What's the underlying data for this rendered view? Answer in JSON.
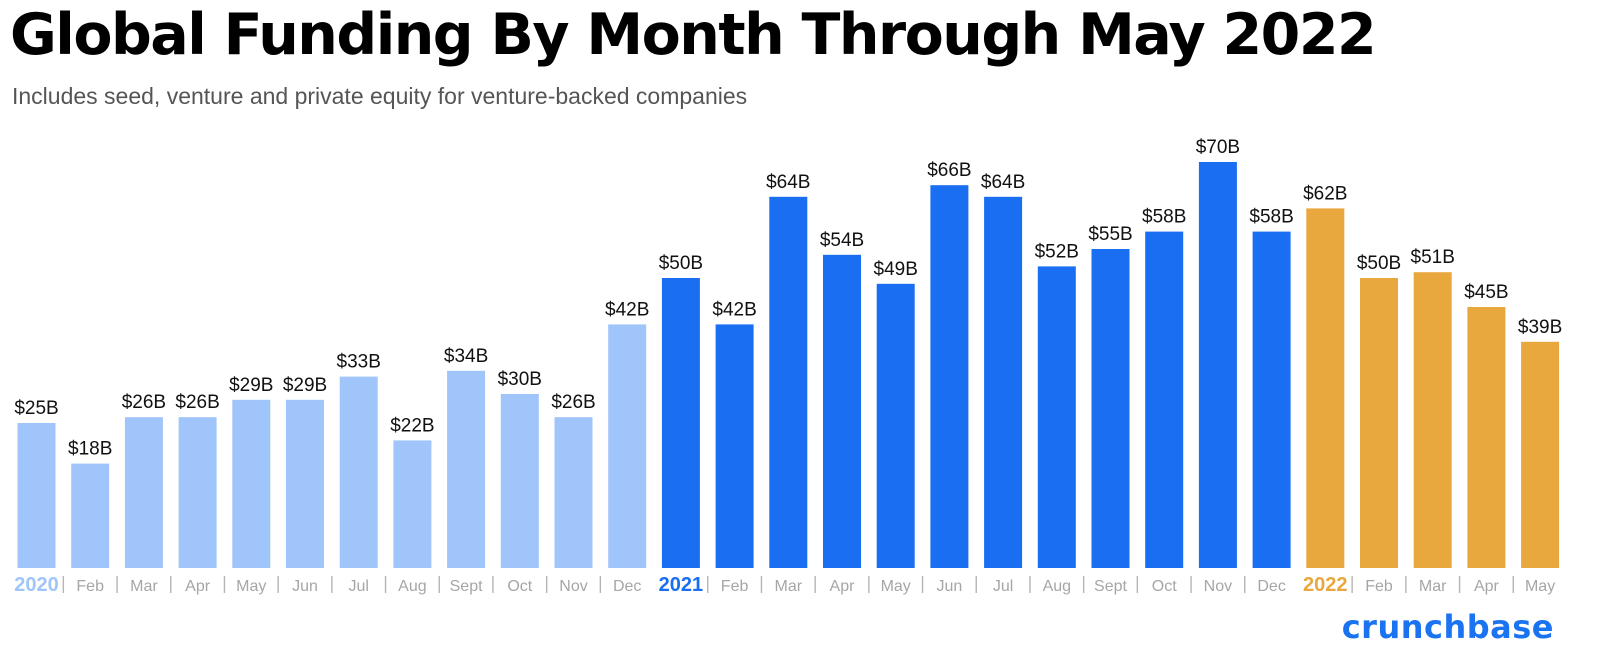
{
  "header": {
    "title": "Global Funding By Month Through May 2022",
    "subtitle": "Includes seed, venture and private equity for venture-backed companies"
  },
  "brand": {
    "logo_text": "crunchbase"
  },
  "colors": {
    "2020": "#9fc5fa",
    "2021": "#1a6ef2",
    "2022": "#e9a83e",
    "month_label": "#a6a6a6",
    "value_label": "#111111"
  },
  "chart_data": {
    "type": "bar",
    "title": "Global Funding By Month Through May 2022",
    "subtitle": "Includes seed, venture and private equity for venture-backed companies",
    "xlabel": "",
    "ylabel": "",
    "value_unit": "$B",
    "grid": false,
    "legend": "none",
    "categories": [
      "2020",
      "Feb",
      "Mar",
      "Apr",
      "May",
      "Jun",
      "Jul",
      "Aug",
      "Sept",
      "Oct",
      "Nov",
      "Dec",
      "2021",
      "Feb",
      "Mar",
      "Apr",
      "May",
      "Jun",
      "Jul",
      "Aug",
      "Sept",
      "Oct",
      "Nov",
      "Dec",
      "2022",
      "Feb",
      "Mar",
      "Apr",
      "May"
    ],
    "values": [
      25,
      18,
      26,
      26,
      29,
      29,
      33,
      22,
      34,
      30,
      26,
      42,
      50,
      42,
      64,
      54,
      49,
      66,
      64,
      52,
      55,
      58,
      70,
      58,
      62,
      50,
      51,
      45,
      39
    ],
    "labels": [
      "$25B",
      "$18B",
      "$26B",
      "$26B",
      "$29B",
      "$29B",
      "$33B",
      "$22B",
      "$34B",
      "$30B",
      "$26B",
      "$42B",
      "$50B",
      "$42B",
      "$64B",
      "$54B",
      "$49B",
      "$66B",
      "$64B",
      "$52B",
      "$55B",
      "$58B",
      "$70B",
      "$58B",
      "$62B",
      "$50B",
      "$51B",
      "$45B",
      "$39B"
    ],
    "year_group": [
      "2020",
      "2020",
      "2020",
      "2020",
      "2020",
      "2020",
      "2020",
      "2020",
      "2020",
      "2020",
      "2020",
      "2020",
      "2021",
      "2021",
      "2021",
      "2021",
      "2021",
      "2021",
      "2021",
      "2021",
      "2021",
      "2021",
      "2021",
      "2021",
      "2022",
      "2022",
      "2022",
      "2022",
      "2022"
    ],
    "ylim": [
      0,
      70
    ]
  }
}
